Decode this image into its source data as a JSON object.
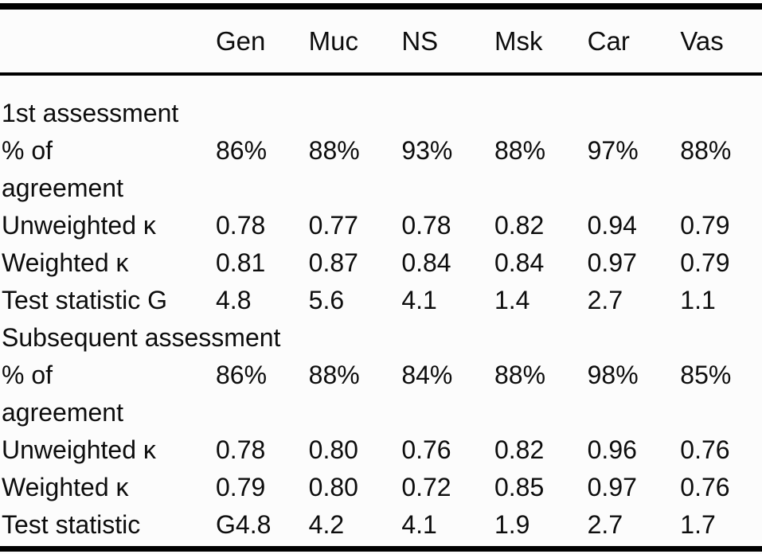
{
  "page": {
    "background": "#fcfcfc",
    "text_color": "#0d0d0d",
    "rule_color": "#000000"
  },
  "table": {
    "column_headers": [
      "Gen",
      "Muc",
      "NS",
      "Msk",
      "Car",
      "Vas"
    ],
    "sections": [
      {
        "title": "1st assessment",
        "rows": [
          {
            "label": "% of\nagreement",
            "values": [
              "86%",
              "88%",
              "93%",
              "88%",
              "97%",
              "88%"
            ]
          },
          {
            "label": "Unweighted κ",
            "values": [
              "0.78",
              "0.77",
              "0.78",
              "0.82",
              "0.94",
              "0.79"
            ]
          },
          {
            "label": "Weighted κ",
            "values": [
              "0.81",
              "0.87",
              "0.84",
              "0.84",
              "0.97",
              "0.79"
            ]
          },
          {
            "label": "Test statistic G",
            "values": [
              "4.8",
              "5.6",
              "4.1",
              "1.4",
              "2.7",
              "1.1"
            ]
          }
        ]
      },
      {
        "title": "Subsequent assessment",
        "rows": [
          {
            "label": "% of\nagreement",
            "values": [
              "86%",
              "88%",
              "84%",
              "88%",
              "98%",
              "85%"
            ]
          },
          {
            "label": "Unweighted κ",
            "values": [
              "0.78",
              "0.80",
              "0.76",
              "0.82",
              "0.96",
              "0.76"
            ]
          },
          {
            "label": "Weighted κ",
            "values": [
              "0.79",
              "0.80",
              "0.72",
              "0.85",
              "0.97",
              "0.76"
            ]
          },
          {
            "label": "Test statistic",
            "values": [
              "G4.8",
              "4.2",
              "4.1",
              "1.9",
              "2.7",
              "1.7"
            ]
          }
        ]
      }
    ]
  }
}
